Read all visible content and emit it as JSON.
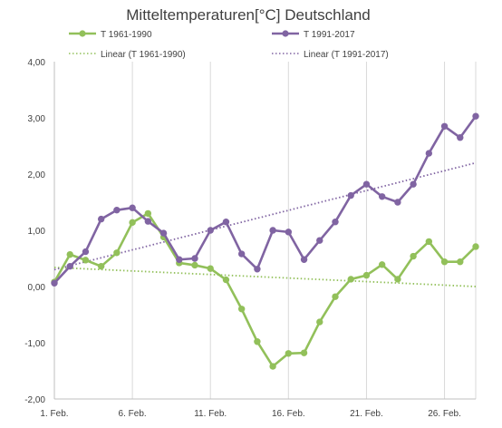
{
  "chart_data": {
    "type": "line",
    "title": "Mitteltemperaturen[°C] Deutschland",
    "x": [
      1,
      2,
      3,
      4,
      5,
      6,
      7,
      8,
      9,
      10,
      11,
      12,
      13,
      14,
      15,
      16,
      17,
      18,
      19,
      20,
      21,
      22,
      23,
      24,
      25,
      26,
      27,
      28
    ],
    "x_ticks": [
      {
        "x": 1,
        "label": "1. Feb."
      },
      {
        "x": 6,
        "label": "6. Feb."
      },
      {
        "x": 11,
        "label": "11. Feb."
      },
      {
        "x": 16,
        "label": "16. Feb."
      },
      {
        "x": 21,
        "label": "21. Feb."
      },
      {
        "x": 26,
        "label": "26. Feb."
      }
    ],
    "y_ticks": [
      "-2,00",
      "-1,00",
      "0,00",
      "1,00",
      "2,00",
      "3,00",
      "4,00"
    ],
    "ylim": [
      -2,
      4
    ],
    "grid": "vertical",
    "legend_position": "top",
    "series": [
      {
        "name": "T 1961-1990",
        "color": "#92c05a",
        "values": [
          0.08,
          0.57,
          0.47,
          0.36,
          0.6,
          1.14,
          1.3,
          0.88,
          0.42,
          0.38,
          0.32,
          0.12,
          -0.4,
          -0.98,
          -1.42,
          -1.19,
          -1.18,
          -0.63,
          -0.18,
          0.13,
          0.2,
          0.39,
          0.13,
          0.54,
          0.8,
          0.44,
          0.44,
          0.71
        ]
      },
      {
        "name": "T 1991-2017",
        "color": "#8064a2",
        "values": [
          0.06,
          0.36,
          0.62,
          1.2,
          1.36,
          1.4,
          1.16,
          0.95,
          0.48,
          0.5,
          1.0,
          1.15,
          0.58,
          0.31,
          1.0,
          0.97,
          0.48,
          0.82,
          1.15,
          1.62,
          1.82,
          1.6,
          1.5,
          1.82,
          2.37,
          2.85,
          2.65,
          3.03
        ]
      }
    ],
    "trendlines": [
      {
        "name": "Linear (T 1961-1990)",
        "color": "#92c05a",
        "start": 0.34,
        "end": 0.0
      },
      {
        "name": "Linear (T 1991-2017)",
        "color": "#8064a2",
        "start": 0.3,
        "end": 2.2
      }
    ]
  }
}
